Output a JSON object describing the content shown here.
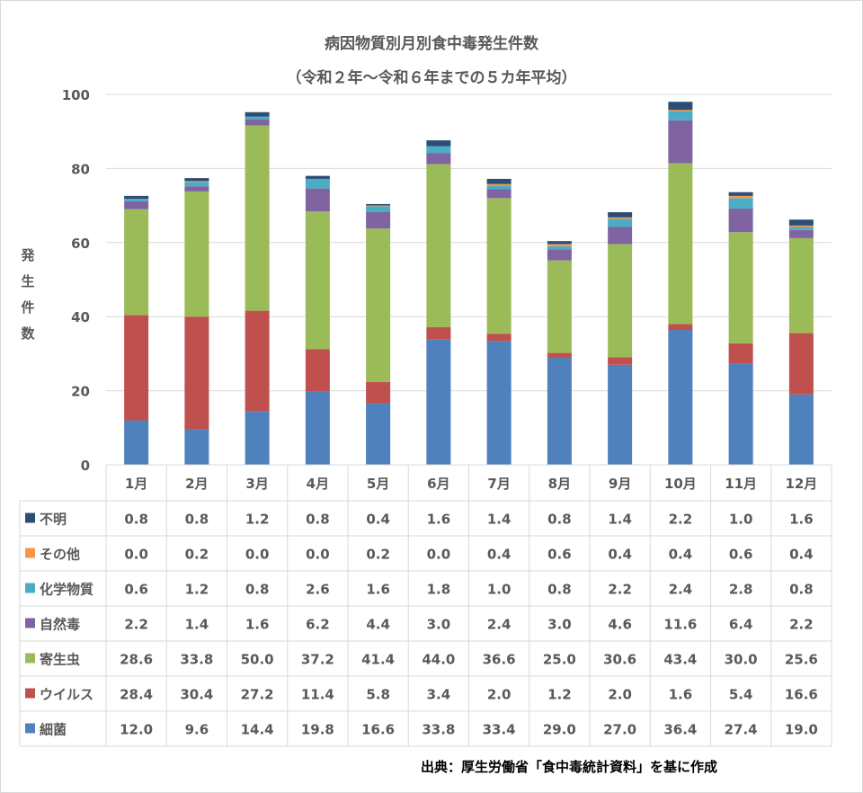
{
  "title": "病因物質別月別食中毒発生件数",
  "subtitle": "（令和２年～令和６年までの５カ年平均）",
  "source": "出典：厚生労働省「食中毒統計資料」を基に作成",
  "chart_data": {
    "type": "bar",
    "stacked": true,
    "title": "病因物質別月別食中毒発生件数",
    "subtitle": "（令和２年～令和６年までの５カ年平均）",
    "ylabel": "発生件数",
    "ylim": [
      0,
      100
    ],
    "yticks": [
      0,
      20,
      40,
      60,
      80,
      100
    ],
    "grid": true,
    "legend": "data-table",
    "categories": [
      "1月",
      "2月",
      "3月",
      "4月",
      "5月",
      "6月",
      "7月",
      "8月",
      "9月",
      "10月",
      "11月",
      "12月"
    ],
    "series": [
      {
        "name": "不明",
        "color": "#2c4d75",
        "values": [
          0.8,
          0.8,
          1.2,
          0.8,
          0.4,
          1.6,
          1.4,
          0.8,
          1.4,
          2.2,
          1.0,
          1.6
        ]
      },
      {
        "name": "その他",
        "color": "#f79646",
        "values": [
          0.0,
          0.2,
          0.0,
          0.0,
          0.2,
          0.0,
          0.4,
          0.6,
          0.4,
          0.4,
          0.6,
          0.4
        ]
      },
      {
        "name": "化学物質",
        "color": "#4bacc6",
        "values": [
          0.6,
          1.2,
          0.8,
          2.6,
          1.6,
          1.8,
          1.0,
          0.8,
          2.2,
          2.4,
          2.8,
          0.8
        ]
      },
      {
        "name": "自然毒",
        "color": "#8064a2",
        "values": [
          2.2,
          1.4,
          1.6,
          6.2,
          4.4,
          3.0,
          2.4,
          3.0,
          4.6,
          11.6,
          6.4,
          2.2
        ]
      },
      {
        "name": "寄生虫",
        "color": "#9bbb59",
        "values": [
          28.6,
          33.8,
          50.0,
          37.2,
          41.4,
          44.0,
          36.6,
          25.0,
          30.6,
          43.4,
          30.0,
          25.6
        ]
      },
      {
        "name": "ウイルス",
        "color": "#c0504d",
        "values": [
          28.4,
          30.4,
          27.2,
          11.4,
          5.8,
          3.4,
          2.0,
          1.2,
          2.0,
          1.6,
          5.4,
          16.6
        ]
      },
      {
        "name": "細菌",
        "color": "#4f81bd",
        "values": [
          12.0,
          9.6,
          14.4,
          19.8,
          16.6,
          33.8,
          33.4,
          29.0,
          27.0,
          36.4,
          27.4,
          19.0
        ]
      }
    ]
  }
}
